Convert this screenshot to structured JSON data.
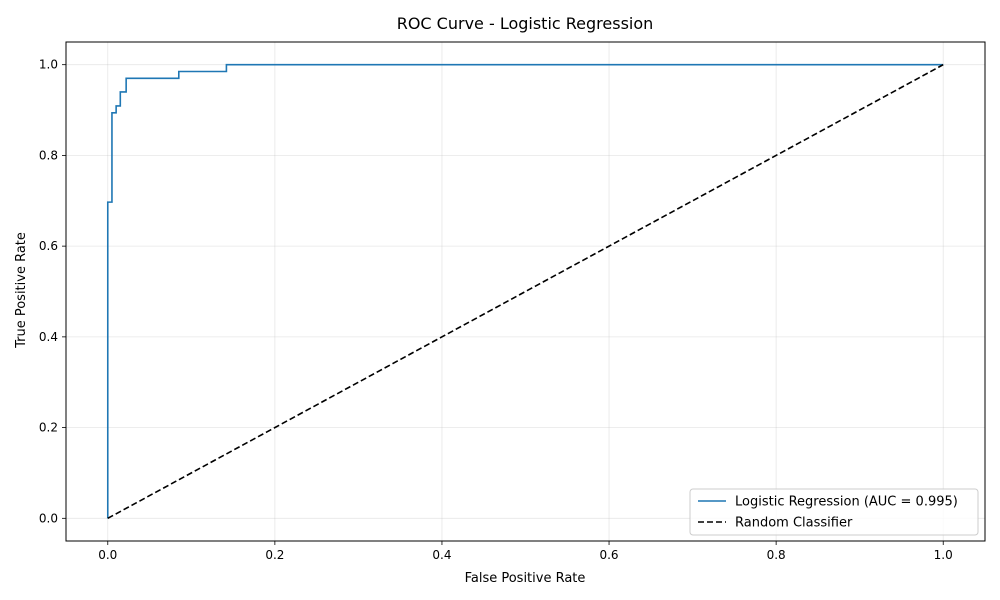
{
  "chart_data": {
    "type": "line",
    "title": "ROC Curve - Logistic Regression",
    "xlabel": "False Positive Rate",
    "ylabel": "True Positive Rate",
    "xlim": [
      -0.05,
      1.05
    ],
    "ylim": [
      -0.05,
      1.05
    ],
    "xticks": [
      "0.0",
      "0.2",
      "0.4",
      "0.6",
      "0.8",
      "1.0"
    ],
    "yticks": [
      "0.0",
      "0.2",
      "0.4",
      "0.6",
      "0.8",
      "1.0"
    ],
    "grid": true,
    "legend_position": "bottom-right",
    "series": [
      {
        "name": "Logistic Regression (AUC = 0.995)",
        "color": "#1f77b4",
        "style": "solid",
        "x": [
          0.0,
          0.0,
          0.005,
          0.005,
          0.01,
          0.01,
          0.015,
          0.015,
          0.022,
          0.022,
          0.085,
          0.085,
          0.142,
          0.142,
          1.0
        ],
        "y": [
          0.0,
          0.697,
          0.697,
          0.894,
          0.894,
          0.909,
          0.909,
          0.94,
          0.94,
          0.97,
          0.97,
          0.985,
          0.985,
          1.0,
          1.0
        ]
      },
      {
        "name": "Random Classifier",
        "color": "#000000",
        "style": "dashed",
        "x": [
          0.0,
          1.0
        ],
        "y": [
          0.0,
          1.0
        ]
      }
    ]
  }
}
